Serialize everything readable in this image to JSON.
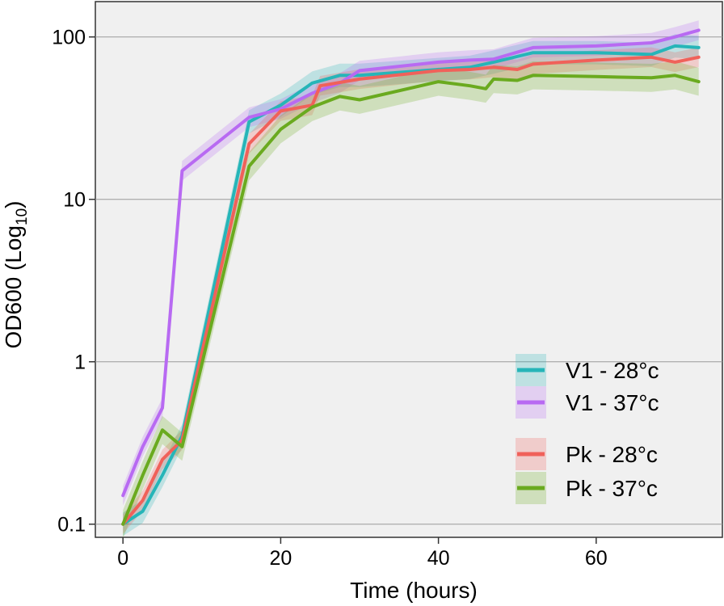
{
  "chart_data": {
    "type": "line",
    "title": "",
    "xlabel": "Time (hours)",
    "ylabel_main": "OD600 (Log",
    "ylabel_sub": "10",
    "ylabel_close": ")",
    "y_scale": "log10",
    "xlim": [
      -3.5,
      76
    ],
    "ylim": [
      0.083,
      165
    ],
    "x_ticks": [
      0,
      20,
      40,
      60
    ],
    "x_tick_labels": [
      "0",
      "20",
      "40",
      "60"
    ],
    "y_ticks": [
      0.1,
      1,
      10,
      100
    ],
    "y_tick_labels": [
      "0.1",
      "1",
      "10",
      "100"
    ],
    "grid": "horizontal major",
    "legend_position": "bottom-right",
    "background_color": "#f0f0f0",
    "series": [
      {
        "name": "V1 - 28°c",
        "color": "#26b5b8",
        "x": [
          0,
          2.5,
          5,
          7.5,
          16,
          20,
          24,
          27.5,
          30,
          40,
          44,
          47,
          52,
          60,
          67,
          70,
          73
        ],
        "y": [
          0.1,
          0.12,
          0.2,
          0.35,
          30,
          38,
          52,
          58,
          58,
          63,
          65,
          70,
          80,
          80,
          78,
          88,
          86
        ],
        "band": 0.18
      },
      {
        "name": "V1 - 37°c",
        "color": "#b86af2",
        "x": [
          0,
          2.5,
          5,
          7.5,
          16,
          20,
          24,
          27.5,
          30,
          40,
          44,
          47,
          52,
          60,
          67,
          70,
          73
        ],
        "y": [
          0.15,
          0.3,
          0.52,
          15,
          32,
          36,
          45,
          52,
          62,
          70,
          72,
          73,
          86,
          88,
          92,
          100,
          110
        ],
        "band": 0.15
      },
      {
        "name": "Pk - 28°c",
        "color": "#f0615a",
        "x": [
          0,
          2.5,
          5,
          7.5,
          16,
          20,
          24,
          25,
          30,
          40,
          44,
          47,
          50,
          52,
          60,
          67,
          70,
          73
        ],
        "y": [
          0.1,
          0.14,
          0.25,
          0.33,
          22,
          35,
          38,
          50,
          55,
          62,
          63,
          65,
          63,
          68,
          72,
          75,
          70,
          75
        ],
        "band": 0.15
      },
      {
        "name": "Pk - 37°c",
        "color": "#6aaa1f",
        "x": [
          0,
          2.5,
          5,
          7.5,
          16,
          20,
          24,
          27.5,
          30,
          40,
          44,
          46,
          47,
          50,
          52,
          60,
          67,
          70,
          73
        ],
        "y": [
          0.1,
          0.2,
          0.38,
          0.3,
          16,
          27,
          37,
          43,
          41,
          53,
          50,
          48,
          55,
          54,
          58,
          57,
          56,
          58,
          53
        ],
        "band": 0.22
      }
    ]
  }
}
